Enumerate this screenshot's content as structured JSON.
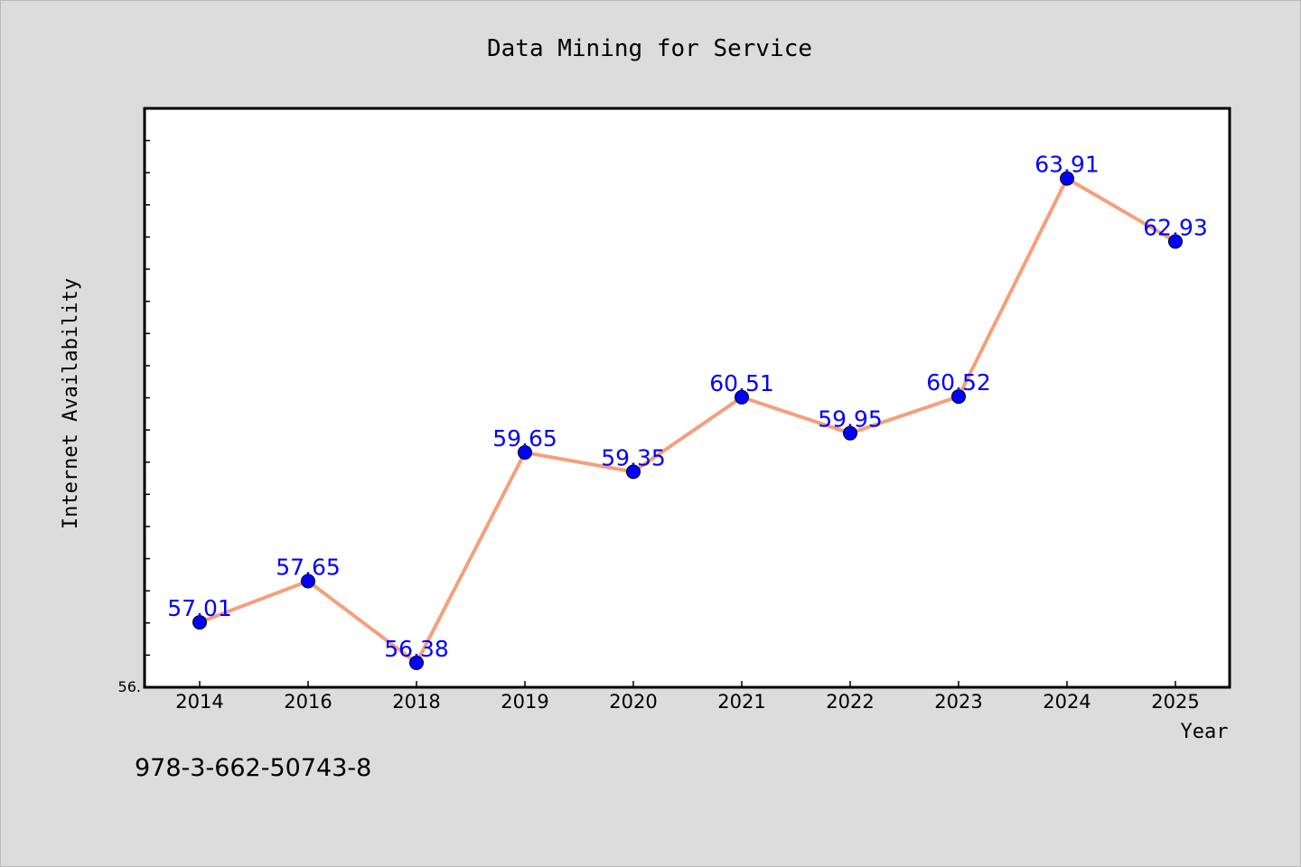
{
  "chart_data": {
    "type": "line",
    "title": "Data Mining for Service",
    "xlabel": "Year",
    "ylabel": "Internet Availability",
    "categories": [
      "2014",
      "2016",
      "2018",
      "2019",
      "2020",
      "2021",
      "2022",
      "2023",
      "2024",
      "2025"
    ],
    "series": [
      {
        "values": [
          57.01,
          57.65,
          56.38,
          59.65,
          59.35,
          60.51,
          59.95,
          60.52,
          63.91,
          62.93
        ],
        "labels": [
          "57.01",
          "57.65",
          "56.38",
          "59.65",
          "59.35",
          "60.51",
          "59.95",
          "60.52",
          "63.91",
          "62.93"
        ],
        "color": "#f4a07c",
        "marker_color": "#0000ff"
      }
    ],
    "ylim": [
      56.0,
      65.0
    ],
    "ytick_labels": [
      "56."
    ],
    "grid": false,
    "legend": "none"
  },
  "footer": {
    "isbn": "978-3-662-50743-8"
  },
  "colors": {
    "background": "#dcdcdc",
    "plot_background": "#ffffff",
    "line": "#f4a07c",
    "marker": "#0000ff",
    "data_label": "#0000ff"
  }
}
